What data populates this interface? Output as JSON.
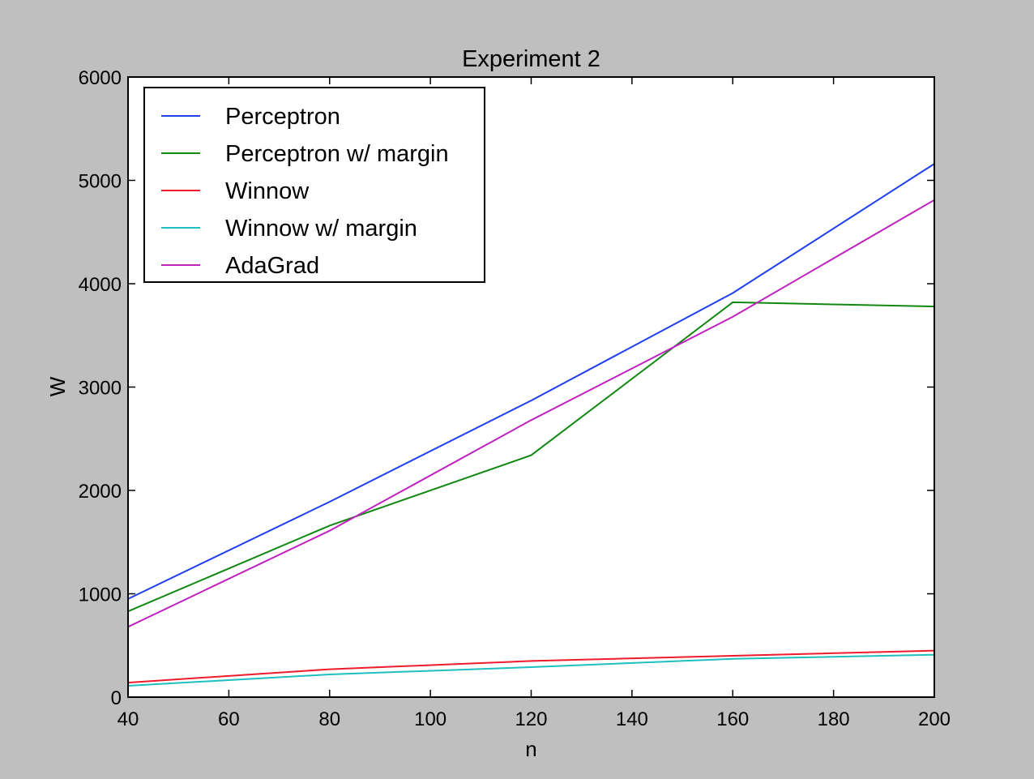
{
  "chart_data": {
    "type": "line",
    "title": "Experiment 2",
    "xlabel": "n",
    "ylabel": "W",
    "x": [
      40,
      80,
      120,
      160,
      200
    ],
    "xlim": [
      40,
      200
    ],
    "ylim": [
      0,
      6000
    ],
    "xticks": [
      40,
      60,
      80,
      100,
      120,
      140,
      160,
      180,
      200
    ],
    "yticks": [
      0,
      1000,
      2000,
      3000,
      4000,
      5000,
      6000
    ],
    "xtick_labels": [
      "40",
      "60",
      "80",
      "100",
      "120",
      "140",
      "160",
      "180",
      "200"
    ],
    "ytick_labels": [
      "0",
      "1000",
      "2000",
      "3000",
      "4000",
      "5000",
      "6000"
    ],
    "grid": false,
    "legend_position": "upper-left",
    "series": [
      {
        "name": "Perceptron",
        "color": "#1f3ff0",
        "values": [
          950,
          1890,
          2870,
          3910,
          5160
        ]
      },
      {
        "name": "Perceptron w/ margin",
        "color": "#118811",
        "values": [
          830,
          1660,
          2340,
          3820,
          3780
        ]
      },
      {
        "name": "Winnow",
        "color": "#ee1c2c",
        "values": [
          140,
          270,
          350,
          400,
          450
        ]
      },
      {
        "name": "Winnow w/ margin",
        "color": "#1fbfbf",
        "values": [
          110,
          220,
          290,
          370,
          410
        ]
      },
      {
        "name": "AdaGrad",
        "color": "#bf22bf",
        "values": [
          680,
          1610,
          2680,
          3680,
          4810
        ]
      }
    ]
  }
}
